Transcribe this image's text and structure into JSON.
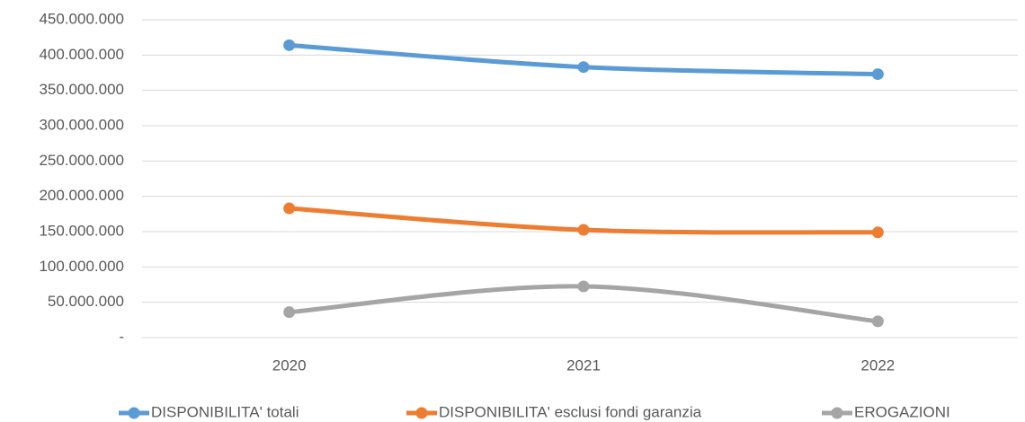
{
  "chart_data": {
    "type": "line",
    "categories": [
      "2020",
      "2021",
      "2022"
    ],
    "series": [
      {
        "name": "DISPONIBILITA' totali",
        "color": "#5b9bd5",
        "values": [
          414000000,
          383000000,
          373000000
        ]
      },
      {
        "name": "DISPONIBILITA' esclusi fondi garanzia",
        "color": "#ed7d31",
        "values": [
          183000000,
          152500000,
          149000000
        ]
      },
      {
        "name": "EROGAZIONI",
        "color": "#a5a5a5",
        "values": [
          36000000,
          72500000,
          23000000
        ]
      }
    ],
    "ylim": [
      0,
      450000000
    ],
    "yticks": [
      {
        "value": 0,
        "label": "-"
      },
      {
        "value": 50000000,
        "label": "50.000.000"
      },
      {
        "value": 100000000,
        "label": "100.000.000"
      },
      {
        "value": 150000000,
        "label": "150.000.000"
      },
      {
        "value": 200000000,
        "label": "200.000.000"
      },
      {
        "value": 250000000,
        "label": "250.000.000"
      },
      {
        "value": 300000000,
        "label": "300.000.000"
      },
      {
        "value": 350000000,
        "label": "350.000.000"
      },
      {
        "value": 400000000,
        "label": "400.000.000"
      },
      {
        "value": 450000000,
        "label": "450.000.000"
      }
    ],
    "grid": true,
    "smooth": true,
    "legend": "bottom"
  }
}
